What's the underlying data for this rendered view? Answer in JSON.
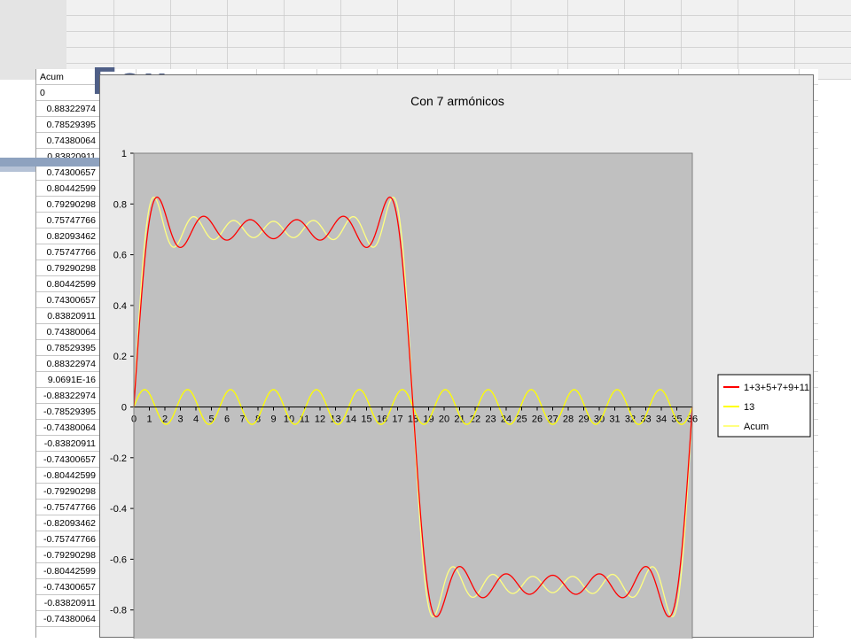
{
  "spreadsheet": {
    "header": "Acum",
    "header_fragment": "0",
    "values": [
      "0.88322974",
      "0.78529395",
      "0.74380064",
      "0.83820911",
      "0.74300657",
      "0.80442599",
      "0.79290298",
      "0.75747766",
      "0.82093462",
      "0.75747766",
      "0.79290298",
      "0.80442599",
      "0.74300657",
      "0.83820911",
      "0.74380064",
      "0.78529395",
      "0.88322974",
      "9.0691E-16",
      "-0.88322974",
      "-0.78529395",
      "-0.74380064",
      "-0.83820911",
      "-0.74300657",
      "-0.80442599",
      "-0.79290298",
      "-0.75747766",
      "-0.82093462",
      "-0.75747766",
      "-0.79290298",
      "-0.80442599",
      "-0.74300657",
      "-0.83820911",
      "-0.74380064"
    ]
  },
  "chart_data": {
    "type": "line",
    "title": "Con 7 armónicos",
    "xlabel": "",
    "ylabel": "",
    "categories": [
      "0",
      "1",
      "2",
      "3",
      "4",
      "5",
      "6",
      "7",
      "8",
      "9",
      "10",
      "11",
      "12",
      "13",
      "14",
      "15",
      "16",
      "17",
      "18",
      "19",
      "20",
      "21",
      "22",
      "23",
      "24",
      "25",
      "26",
      "27",
      "28",
      "29",
      "30",
      "31",
      "32",
      "33",
      "34",
      "35",
      "36"
    ],
    "xlim": [
      0,
      36
    ],
    "ylim": [
      -1,
      1
    ],
    "y_ticks": [
      "1",
      "0.8",
      "0.6",
      "0.4",
      "0.2",
      "0",
      "-0.2",
      "-0.4",
      "-0.6",
      "-0.8"
    ],
    "grid": false,
    "plot_background": "#c0c0c0",
    "legend_position": "right",
    "series": [
      {
        "name": "1+3+5+7+9+11",
        "color": "#ff0000",
        "harmonics": [
          1,
          3,
          5,
          7,
          9,
          11
        ]
      },
      {
        "name": "13",
        "color": "#ffff00",
        "harmonics": [
          13
        ]
      },
      {
        "name": "Acum",
        "color": "#ffff80",
        "harmonics": [
          1,
          3,
          5,
          7,
          9,
          11,
          13
        ]
      }
    ]
  }
}
